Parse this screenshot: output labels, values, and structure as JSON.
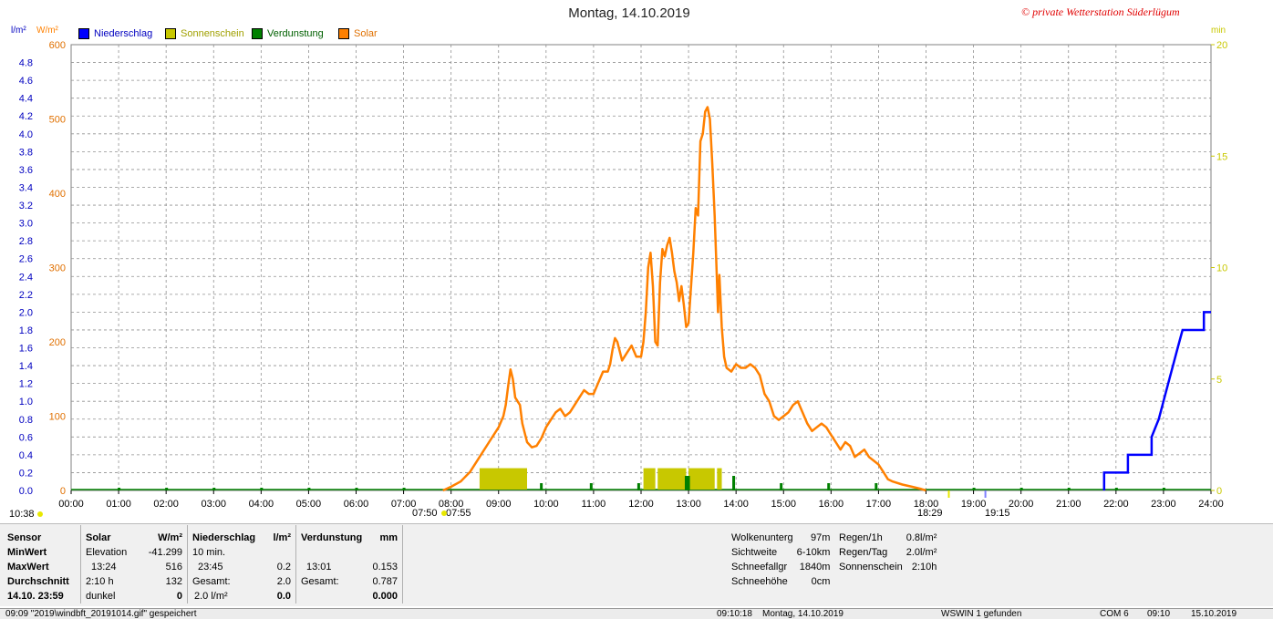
{
  "title": "Montag, 14.10.2019",
  "copyright": "© private Wetterstation Süderlügum",
  "units": {
    "left1": "l/m²",
    "left2": "W/m²",
    "right": "min"
  },
  "legend": [
    {
      "label": "Niederschlag",
      "color": "#0000ff"
    },
    {
      "label": "Sonnenschein",
      "color": "#c8c800"
    },
    {
      "label": "Verdunstung",
      "color": "#008000"
    },
    {
      "label": "Solar",
      "color": "#ff8000"
    }
  ],
  "markers": {
    "moon_rise": "10:38",
    "sunrise": "07:50",
    "sunrise2": "07:55",
    "sunset": "18:29",
    "sunset2": "19:15"
  },
  "chart_data": {
    "type": "line",
    "x_ticks": [
      "00:00",
      "01:00",
      "02:00",
      "03:00",
      "04:00",
      "05:00",
      "06:00",
      "07:00",
      "08:00",
      "09:00",
      "10:00",
      "11:00",
      "12:00",
      "13:00",
      "14:00",
      "15:00",
      "16:00",
      "17:00",
      "18:00",
      "19:00",
      "20:00",
      "21:00",
      "22:00",
      "23:00",
      "24:00"
    ],
    "y_solar_ticks": [
      "600",
      "500",
      "400",
      "300",
      "200",
      "100",
      "0"
    ],
    "y_precip_ticks": [
      "4.8",
      "4.6",
      "4.4",
      "4.2",
      "4.0",
      "3.8",
      "3.6",
      "3.4",
      "3.2",
      "3.0",
      "2.8",
      "2.6",
      "2.4",
      "2.2",
      "2.0",
      "1.8",
      "1.6",
      "1.4",
      "1.2",
      "1.0",
      "0.8",
      "0.6",
      "0.4",
      "0.2",
      "0.0"
    ],
    "y_min_ticks": [
      "20",
      "15",
      "10",
      "5",
      "0"
    ],
    "ylim_solar": [
      0,
      600
    ],
    "ylim_precip": [
      0,
      5.0
    ],
    "ylim_min": [
      0,
      20
    ],
    "solar_series": {
      "name": "Solar",
      "points": [
        [
          7.83,
          0
        ],
        [
          8.0,
          5
        ],
        [
          8.2,
          12
        ],
        [
          8.4,
          25
        ],
        [
          8.6,
          45
        ],
        [
          8.8,
          65
        ],
        [
          9.0,
          85
        ],
        [
          9.1,
          100
        ],
        [
          9.15,
          115
        ],
        [
          9.2,
          140
        ],
        [
          9.25,
          163
        ],
        [
          9.3,
          150
        ],
        [
          9.35,
          125
        ],
        [
          9.45,
          115
        ],
        [
          9.5,
          90
        ],
        [
          9.6,
          65
        ],
        [
          9.7,
          58
        ],
        [
          9.8,
          60
        ],
        [
          9.9,
          70
        ],
        [
          10.0,
          85
        ],
        [
          10.1,
          95
        ],
        [
          10.2,
          105
        ],
        [
          10.3,
          110
        ],
        [
          10.4,
          100
        ],
        [
          10.5,
          105
        ],
        [
          10.6,
          115
        ],
        [
          10.7,
          125
        ],
        [
          10.8,
          135
        ],
        [
          10.9,
          130
        ],
        [
          11.0,
          130
        ],
        [
          11.1,
          145
        ],
        [
          11.2,
          160
        ],
        [
          11.3,
          160
        ],
        [
          11.35,
          170
        ],
        [
          11.4,
          190
        ],
        [
          11.45,
          205
        ],
        [
          11.5,
          200
        ],
        [
          11.6,
          175
        ],
        [
          11.7,
          185
        ],
        [
          11.8,
          195
        ],
        [
          11.9,
          180
        ],
        [
          12.0,
          180
        ],
        [
          12.05,
          200
        ],
        [
          12.1,
          240
        ],
        [
          12.15,
          300
        ],
        [
          12.2,
          320
        ],
        [
          12.25,
          275
        ],
        [
          12.3,
          200
        ],
        [
          12.35,
          195
        ],
        [
          12.4,
          280
        ],
        [
          12.45,
          325
        ],
        [
          12.5,
          315
        ],
        [
          12.55,
          330
        ],
        [
          12.6,
          340
        ],
        [
          12.65,
          320
        ],
        [
          12.7,
          295
        ],
        [
          12.75,
          280
        ],
        [
          12.8,
          255
        ],
        [
          12.85,
          275
        ],
        [
          12.9,
          250
        ],
        [
          12.95,
          220
        ],
        [
          13.0,
          225
        ],
        [
          13.1,
          320
        ],
        [
          13.15,
          380
        ],
        [
          13.2,
          370
        ],
        [
          13.25,
          470
        ],
        [
          13.3,
          480
        ],
        [
          13.35,
          510
        ],
        [
          13.4,
          516
        ],
        [
          13.45,
          500
        ],
        [
          13.5,
          440
        ],
        [
          13.55,
          370
        ],
        [
          13.6,
          280
        ],
        [
          13.62,
          240
        ],
        [
          13.65,
          290
        ],
        [
          13.7,
          220
        ],
        [
          13.75,
          180
        ],
        [
          13.8,
          165
        ],
        [
          13.9,
          160
        ],
        [
          14.0,
          170
        ],
        [
          14.1,
          165
        ],
        [
          14.2,
          165
        ],
        [
          14.3,
          170
        ],
        [
          14.4,
          165
        ],
        [
          14.5,
          155
        ],
        [
          14.6,
          130
        ],
        [
          14.7,
          120
        ],
        [
          14.8,
          100
        ],
        [
          14.9,
          95
        ],
        [
          15.0,
          100
        ],
        [
          15.1,
          105
        ],
        [
          15.2,
          115
        ],
        [
          15.3,
          120
        ],
        [
          15.4,
          105
        ],
        [
          15.5,
          90
        ],
        [
          15.6,
          80
        ],
        [
          15.7,
          85
        ],
        [
          15.8,
          90
        ],
        [
          15.9,
          85
        ],
        [
          16.0,
          75
        ],
        [
          16.1,
          65
        ],
        [
          16.2,
          55
        ],
        [
          16.3,
          65
        ],
        [
          16.4,
          60
        ],
        [
          16.5,
          45
        ],
        [
          16.6,
          50
        ],
        [
          16.7,
          55
        ],
        [
          16.8,
          45
        ],
        [
          16.9,
          40
        ],
        [
          17.0,
          35
        ],
        [
          17.1,
          25
        ],
        [
          17.2,
          15
        ],
        [
          17.3,
          12
        ],
        [
          17.5,
          8
        ],
        [
          17.7,
          5
        ],
        [
          17.9,
          2
        ],
        [
          18.0,
          0
        ]
      ]
    },
    "sunshine_blocks": [
      [
        8.6,
        9.6
      ],
      [
        12.05,
        12.3
      ],
      [
        12.35,
        12.95
      ],
      [
        13.0,
        13.55
      ],
      [
        13.6,
        13.7
      ]
    ],
    "evaporation_ticks": [
      9.9,
      10.95,
      11.95,
      12.95,
      13.0,
      13.95,
      14.95,
      15.95,
      16.95
    ],
    "precip_series": {
      "name": "Niederschlag",
      "points": [
        [
          21.75,
          0
        ],
        [
          21.75,
          0.2
        ],
        [
          22.25,
          0.2
        ],
        [
          22.25,
          0.4
        ],
        [
          22.75,
          0.4
        ],
        [
          22.75,
          0.6
        ],
        [
          22.9,
          0.8
        ],
        [
          23.0,
          1.0
        ],
        [
          23.1,
          1.2
        ],
        [
          23.2,
          1.4
        ],
        [
          23.3,
          1.6
        ],
        [
          23.4,
          1.8
        ],
        [
          23.5,
          1.8
        ],
        [
          23.85,
          1.8
        ],
        [
          23.85,
          2.0
        ],
        [
          24.0,
          2.0
        ]
      ]
    }
  },
  "stats": {
    "sensor": {
      "header": "Sensor",
      "min": "MinWert",
      "max": "MaxWert",
      "avg": "Durchschnitt",
      "date": "14.10. 23:59"
    },
    "solar": {
      "header": "Solar",
      "unit": "W/m²",
      "r1a": "Elevation",
      "r1b": "-41.299",
      "r2a": "13:24",
      "r2b": "516",
      "r3a": "2:10 h",
      "r3b": "132",
      "r4a": "dunkel",
      "r4b": "0"
    },
    "precip": {
      "header": "Niederschlag",
      "unit": "l/m²",
      "r1a": "10 min.",
      "r1b": "",
      "r2a": "23:45",
      "r2b": "0.2",
      "r3a": "Gesamt:",
      "r3b": "2.0",
      "r4a": "2.0 l/m²",
      "r4b": "0.0"
    },
    "evap": {
      "header": "Verdunstung",
      "unit": "mm",
      "r2a": "13:01",
      "r2b": "0.153",
      "r3a": "Gesamt:",
      "r3b": "0.787",
      "r4b": "0.000"
    },
    "weather": {
      "l1": "Wolkenunterg",
      "v1": "97m",
      "l2": "Sichtweite",
      "v2": "6-10km",
      "l3": "Schneefallgr",
      "v3": "1840m",
      "l4": "Schneehöhe",
      "v4": "0cm"
    },
    "rain": {
      "l1": "Regen/1h",
      "v1": "0.8l/m²",
      "l2": "Regen/Tag",
      "v2": "2.0l/m²",
      "l3": "Sonnenschein",
      "v3": "2:10h"
    }
  },
  "statusbar": {
    "s1": "09:09 \"2019\\windbft_20191014.gif\" gespeichert",
    "s2": "09:10:18",
    "s3": "Montag, 14.10.2019",
    "s4": "WSWIN 1 gefunden",
    "s5": "COM 6",
    "s6": "09:10",
    "s7": "15.10.2019"
  }
}
